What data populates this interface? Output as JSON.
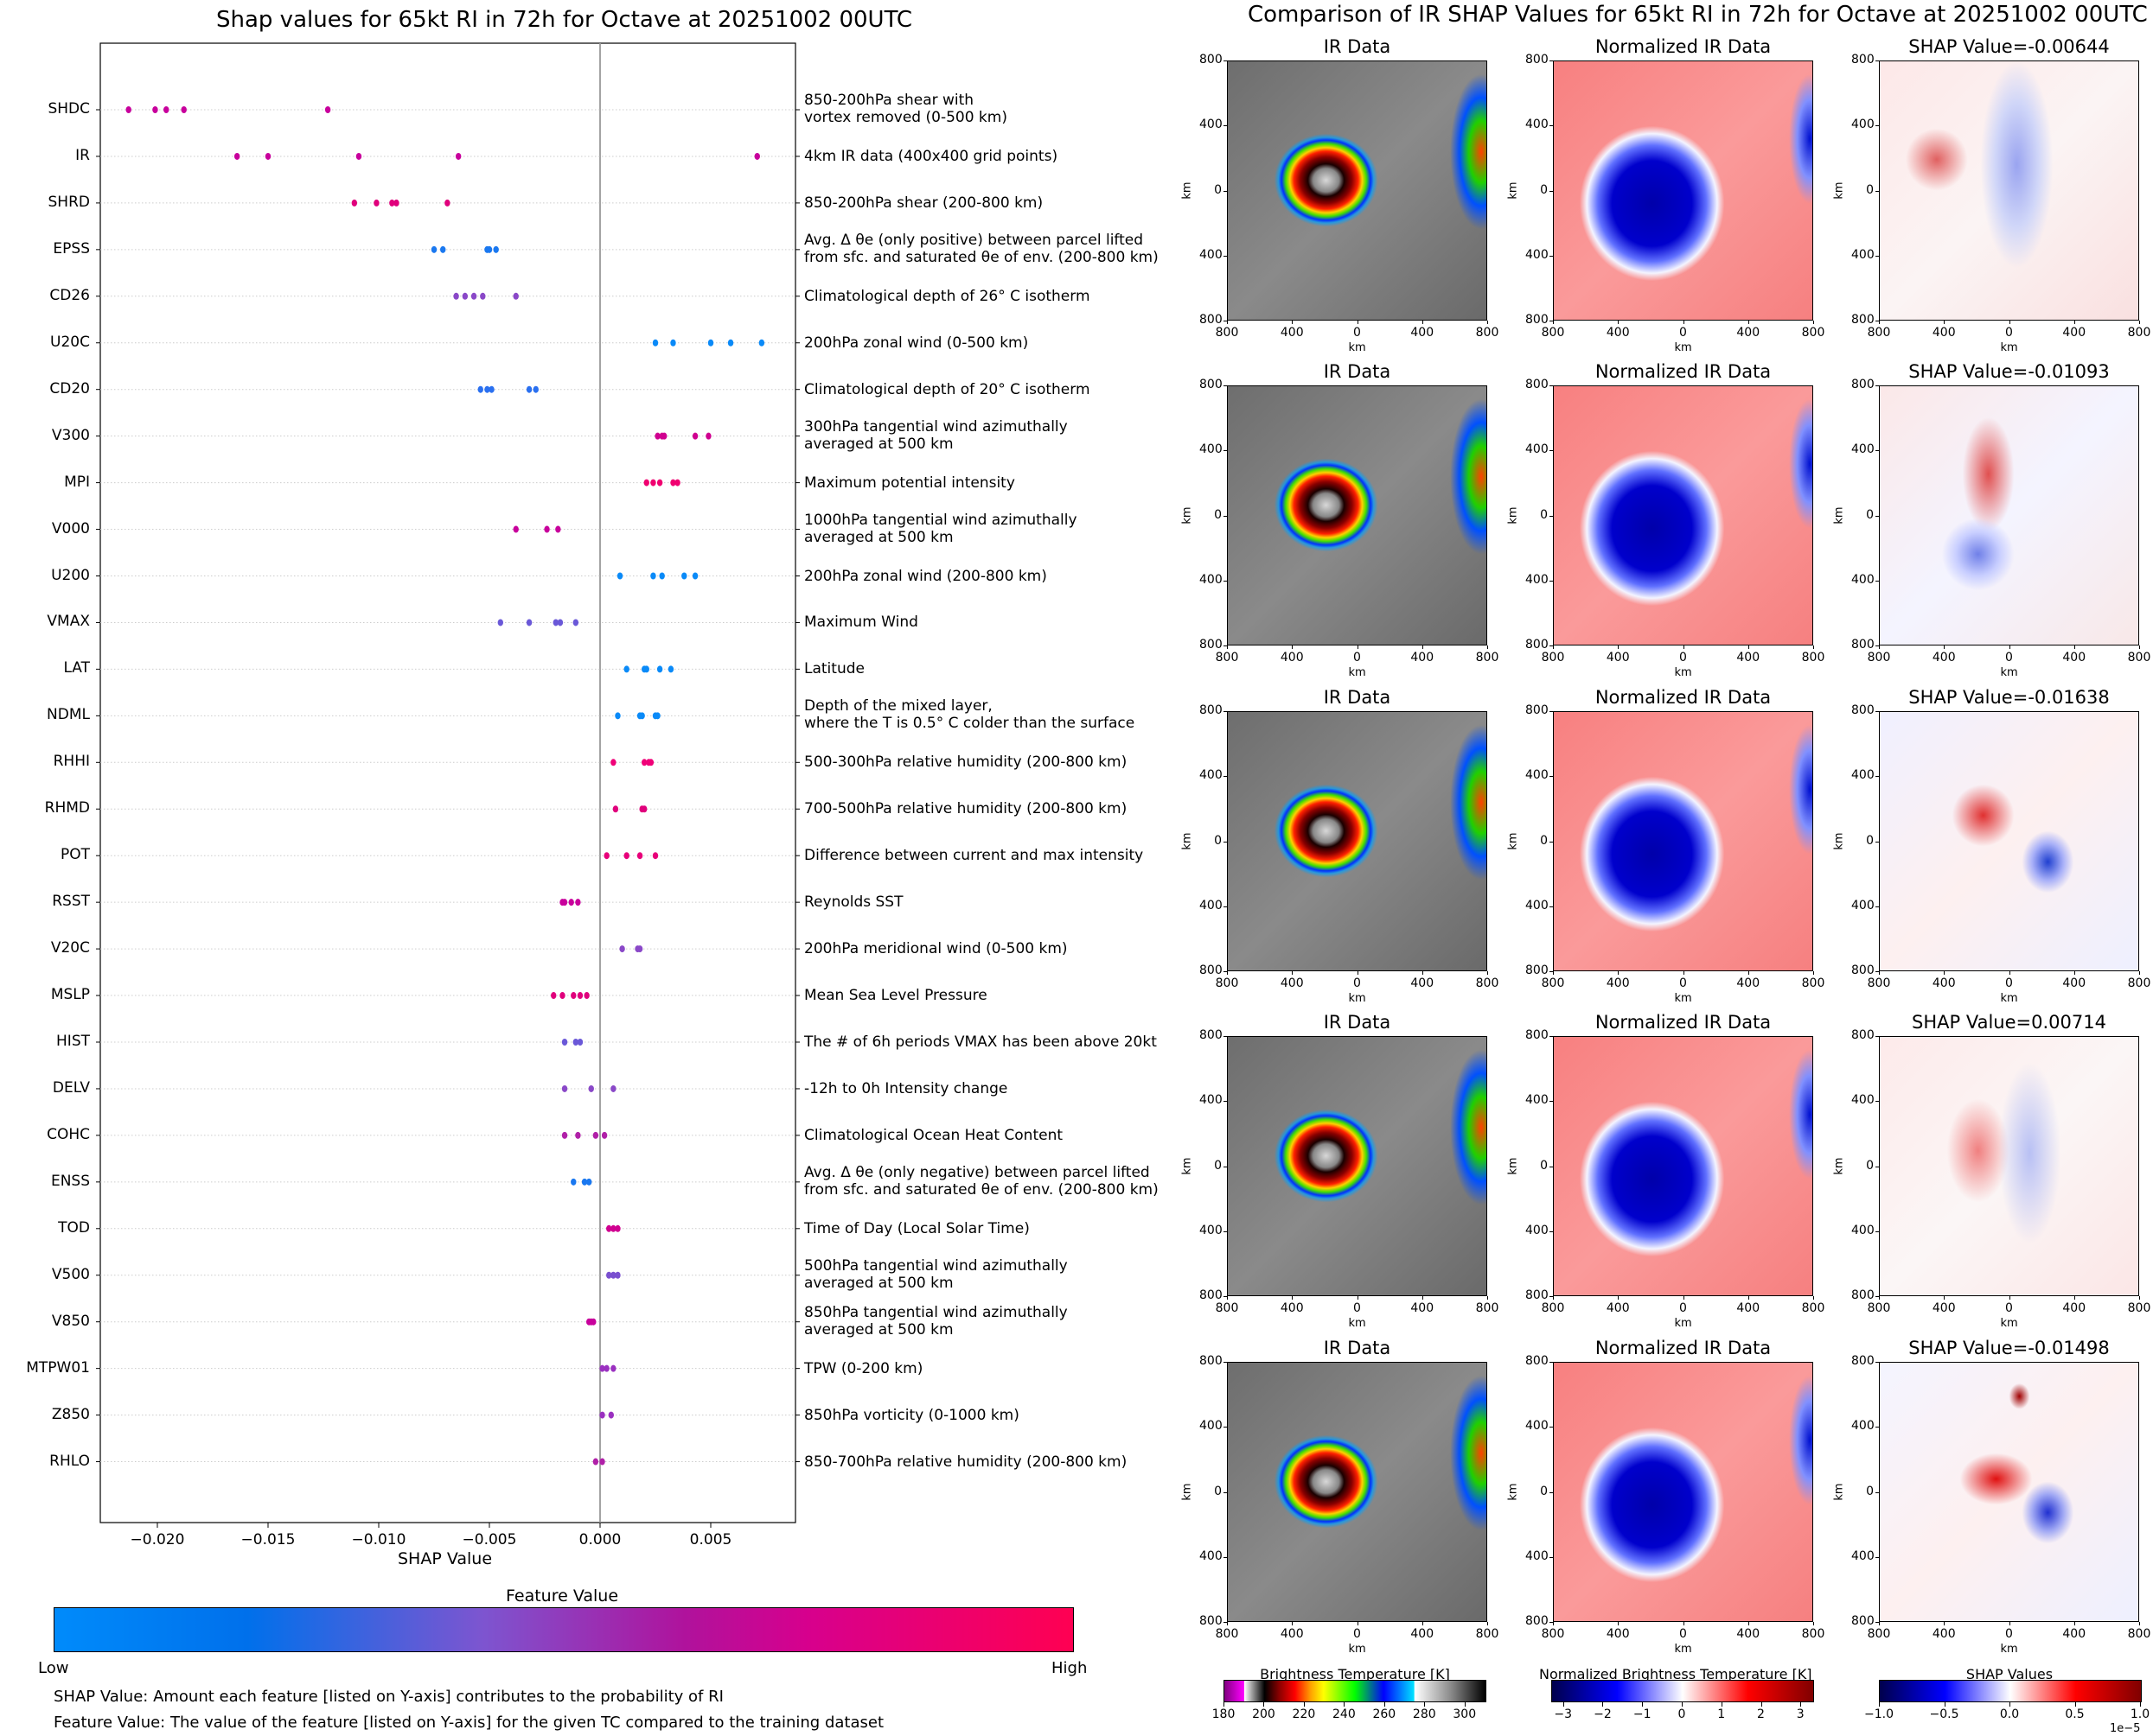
{
  "left_title": "Shap values for 65kt RI in 72h for Octave at 20251002 00UTC",
  "right_title": "Comparison of IR SHAP Values for 65kt RI in 72h for Octave at 20251002 00UTC",
  "chart_data": [
    {
      "type": "scatter",
      "title": "Shap values for 65kt RI in 72h for Octave at 20251002 00UTC",
      "xlabel": "SHAP Value",
      "xlim": [
        -0.0225,
        0.0095
      ],
      "xticks": [
        -0.02,
        -0.015,
        -0.01,
        -0.005,
        0.0,
        0.005
      ],
      "xtick_labels": [
        "−0.020",
        "−0.015",
        "−0.010",
        "−0.005",
        "0.000",
        "0.005"
      ],
      "reference_line_x": 0.0,
      "grid": "horizontal dotted",
      "features": [
        {
          "name": "SHDC",
          "desc": [
            "850-200hPa shear with",
            "vortex removed (0-500 km)"
          ],
          "color": "#c8009c",
          "values": [
            -0.0213,
            -0.0201,
            -0.0196,
            -0.0188,
            -0.0123
          ]
        },
        {
          "name": "IR",
          "desc": [
            "4km IR data (400x400 grid points)"
          ],
          "color": "#c8009c",
          "values": [
            -0.0164,
            -0.015,
            -0.0109,
            -0.0064,
            0.0071
          ]
        },
        {
          "name": "SHRD",
          "desc": [
            "850-200hPa shear (200-800 km)"
          ],
          "color": "#e0007c",
          "values": [
            -0.0111,
            -0.0101,
            -0.0092,
            -0.0094,
            -0.0069
          ]
        },
        {
          "name": "EPSS",
          "desc": [
            "Avg. Δ θe (only positive) between parcel lifted",
            "from sfc. and saturated θe of env. (200-800 km)"
          ],
          "color": "#1a78f0",
          "values": [
            -0.0075,
            -0.0071,
            -0.0051,
            -0.005,
            -0.0047
          ]
        },
        {
          "name": "CD26",
          "desc": [
            "Climatological depth of 26° C isotherm"
          ],
          "color": "#8a48c8",
          "values": [
            -0.0065,
            -0.0061,
            -0.0057,
            -0.0053,
            -0.0038
          ]
        },
        {
          "name": "U20C",
          "desc": [
            "200hPa zonal wind (0-500 km)"
          ],
          "color": "#0a8af8",
          "values": [
            0.0025,
            0.0033,
            0.005,
            0.0059,
            0.0073
          ]
        },
        {
          "name": "CD20",
          "desc": [
            "Climatological depth of 20° C isotherm"
          ],
          "color": "#2a70f0",
          "values": [
            -0.0054,
            -0.0051,
            -0.0049,
            -0.0032,
            -0.0029
          ]
        },
        {
          "name": "V300",
          "desc": [
            "300hPa tangential wind azimuthally",
            "averaged at 500 km"
          ],
          "color": "#d00090",
          "values": [
            0.0026,
            0.0028,
            0.0029,
            0.0043,
            0.0049
          ]
        },
        {
          "name": "MPI",
          "desc": [
            "Maximum potential intensity"
          ],
          "color": "#f00070",
          "values": [
            0.0021,
            0.0024,
            0.0027,
            0.0033,
            0.0035
          ]
        },
        {
          "name": "V000",
          "desc": [
            "1000hPa tangential wind azimuthally",
            "averaged at 500 km"
          ],
          "color": "#c8009c",
          "values": [
            -0.0038,
            -0.0024,
            -0.0019
          ]
        },
        {
          "name": "U200",
          "desc": [
            "200hPa zonal wind (200-800 km)"
          ],
          "color": "#0a8af8",
          "values": [
            0.0009,
            0.0024,
            0.0028,
            0.0038,
            0.0043
          ]
        },
        {
          "name": "VMAX",
          "desc": [
            "Maximum Wind"
          ],
          "color": "#6a58d8",
          "values": [
            -0.0045,
            -0.0032,
            -0.002,
            -0.0018,
            -0.0011
          ]
        },
        {
          "name": "LAT",
          "desc": [
            "Latitude"
          ],
          "color": "#0a8af8",
          "values": [
            0.0012,
            0.002,
            0.0021,
            0.0027,
            0.0032
          ]
        },
        {
          "name": "NDML",
          "desc": [
            "Depth of the mixed layer,",
            "where the T is 0.5° C colder than the surface"
          ],
          "color": "#0a8af8",
          "values": [
            0.0008,
            0.0018,
            0.0019,
            0.0025,
            0.0026
          ]
        },
        {
          "name": "RHHI",
          "desc": [
            "500-300hPa relative humidity (200-800 km)"
          ],
          "color": "#f00078",
          "values": [
            0.0006,
            0.002,
            0.0022,
            0.0023
          ]
        },
        {
          "name": "RHMD",
          "desc": [
            "700-500hPa relative humidity (200-800 km)"
          ],
          "color": "#e0007c",
          "values": [
            0.0007,
            0.0019,
            0.002
          ]
        },
        {
          "name": "POT",
          "desc": [
            "Difference between current and max intensity"
          ],
          "color": "#e8007a",
          "values": [
            0.0003,
            0.0012,
            0.0018,
            0.0025
          ]
        },
        {
          "name": "RSST",
          "desc": [
            "Reynolds SST"
          ],
          "color": "#c8009c",
          "values": [
            -0.0017,
            -0.0016,
            -0.0013,
            -0.001
          ]
        },
        {
          "name": "V20C",
          "desc": [
            "200hPa meridional wind (0-500 km)"
          ],
          "color": "#8a48c8",
          "values": [
            0.001,
            0.0017,
            0.0018
          ]
        },
        {
          "name": "MSLP",
          "desc": [
            "Mean Sea Level Pressure"
          ],
          "color": "#e0007c",
          "values": [
            -0.0021,
            -0.0017,
            -0.0012,
            -0.0009,
            -0.0006
          ]
        },
        {
          "name": "HIST",
          "desc": [
            "The # of 6h periods VMAX has been above 20kt"
          ],
          "color": "#6a58d8",
          "values": [
            -0.0016,
            -0.0011,
            -0.0009
          ]
        },
        {
          "name": "DELV",
          "desc": [
            "-12h to 0h Intensity change"
          ],
          "color": "#8a48c8",
          "values": [
            -0.0016,
            -0.0004,
            0.0006
          ]
        },
        {
          "name": "COHC",
          "desc": [
            "Climatological Ocean Heat Content"
          ],
          "color": "#b020a8",
          "values": [
            -0.0016,
            -0.001,
            -0.0002,
            0.0002
          ]
        },
        {
          "name": "ENSS",
          "desc": [
            "Avg. Δ θe (only negative) between parcel lifted",
            "from sfc. and saturated θe of env. (200-800 km)"
          ],
          "color": "#1a78f0",
          "values": [
            -0.0012,
            -0.0007,
            -0.0005
          ]
        },
        {
          "name": "TOD",
          "desc": [
            "Time of Day (Local Solar Time)"
          ],
          "color": "#d00090",
          "values": [
            0.0004,
            0.0006,
            0.0008
          ]
        },
        {
          "name": "V500",
          "desc": [
            "500hPa tangential wind azimuthally",
            "averaged at 500 km"
          ],
          "color": "#7a50d0",
          "values": [
            0.0004,
            0.0006,
            0.0008
          ]
        },
        {
          "name": "V850",
          "desc": [
            "850hPa tangential wind azimuthally",
            "averaged at 500 km"
          ],
          "color": "#c8009c",
          "values": [
            -0.0005,
            -0.0004,
            -0.0003
          ]
        },
        {
          "name": "MTPW01",
          "desc": [
            "TPW (0-200 km)"
          ],
          "color": "#9a30c0",
          "values": [
            0.0001,
            0.0003,
            0.0006
          ]
        },
        {
          "name": "Z850",
          "desc": [
            "850hPa vorticity (0-1000 km)"
          ],
          "color": "#9a30c0",
          "values": [
            0.0001,
            0.0005
          ]
        },
        {
          "name": "RHLO",
          "desc": [
            "850-700hPa relative humidity (200-800 km)"
          ],
          "color": "#b020a8",
          "values": [
            -0.0002,
            0.0001
          ]
        }
      ],
      "colorbar": {
        "title": "Feature Value",
        "low_label": "Low",
        "high_label": "High",
        "colors": [
          "#008bfb",
          "#0070eb",
          "#7d55d0",
          "#b0129c",
          "#d7008d",
          "#ff0052"
        ]
      }
    },
    {
      "type": "heatmap",
      "title": "Comparison of IR SHAP Values for 65kt RI in 72h for Octave at 20251002 00UTC",
      "panel_columns": [
        "IR Data",
        "Normalized IR Data",
        "SHAP Value"
      ],
      "rows_shap_values": [
        -0.00644,
        -0.01093,
        -0.01638,
        0.00714,
        -0.01498
      ],
      "axis_label": "km",
      "x_ticks": [
        "800",
        "400",
        "0",
        "400",
        "800"
      ],
      "y_ticks": [
        "800",
        "400",
        "0",
        "400",
        "800"
      ]
    }
  ],
  "footnotes": [
    "SHAP Value: Amount each feature [listed on Y-axis] contributes to the probability of RI",
    "Feature Value: The value of the feature [listed on Y-axis] for the given TC compared to the training dataset"
  ],
  "panels": {
    "ir_title": "IR Data",
    "norm_title": "Normalized IR Data",
    "shap_titles": [
      "SHAP Value=-0.00644",
      "SHAP Value=-0.01093",
      "SHAP Value=-0.01638",
      "SHAP Value=0.00714",
      "SHAP Value=-0.01498"
    ],
    "km": "km"
  },
  "colorbars": {
    "bt": {
      "title": "Brightness Temperature [K]",
      "ticks": [
        "180",
        "200",
        "220",
        "240",
        "260",
        "280",
        "300"
      ],
      "range": [
        180,
        310
      ]
    },
    "norm": {
      "title": "Normalized Brightness Temperature [K]",
      "ticks": [
        "−3",
        "−2",
        "−1",
        "0",
        "1",
        "2",
        "3"
      ],
      "range": [
        -3.3,
        3.3
      ]
    },
    "shap": {
      "title": "SHAP Values",
      "ticks": [
        "−1.0",
        "−0.5",
        "0.0",
        "0.5",
        "1.0"
      ],
      "range": [
        -1.0,
        1.0
      ],
      "scale_label": "1e−5"
    }
  }
}
